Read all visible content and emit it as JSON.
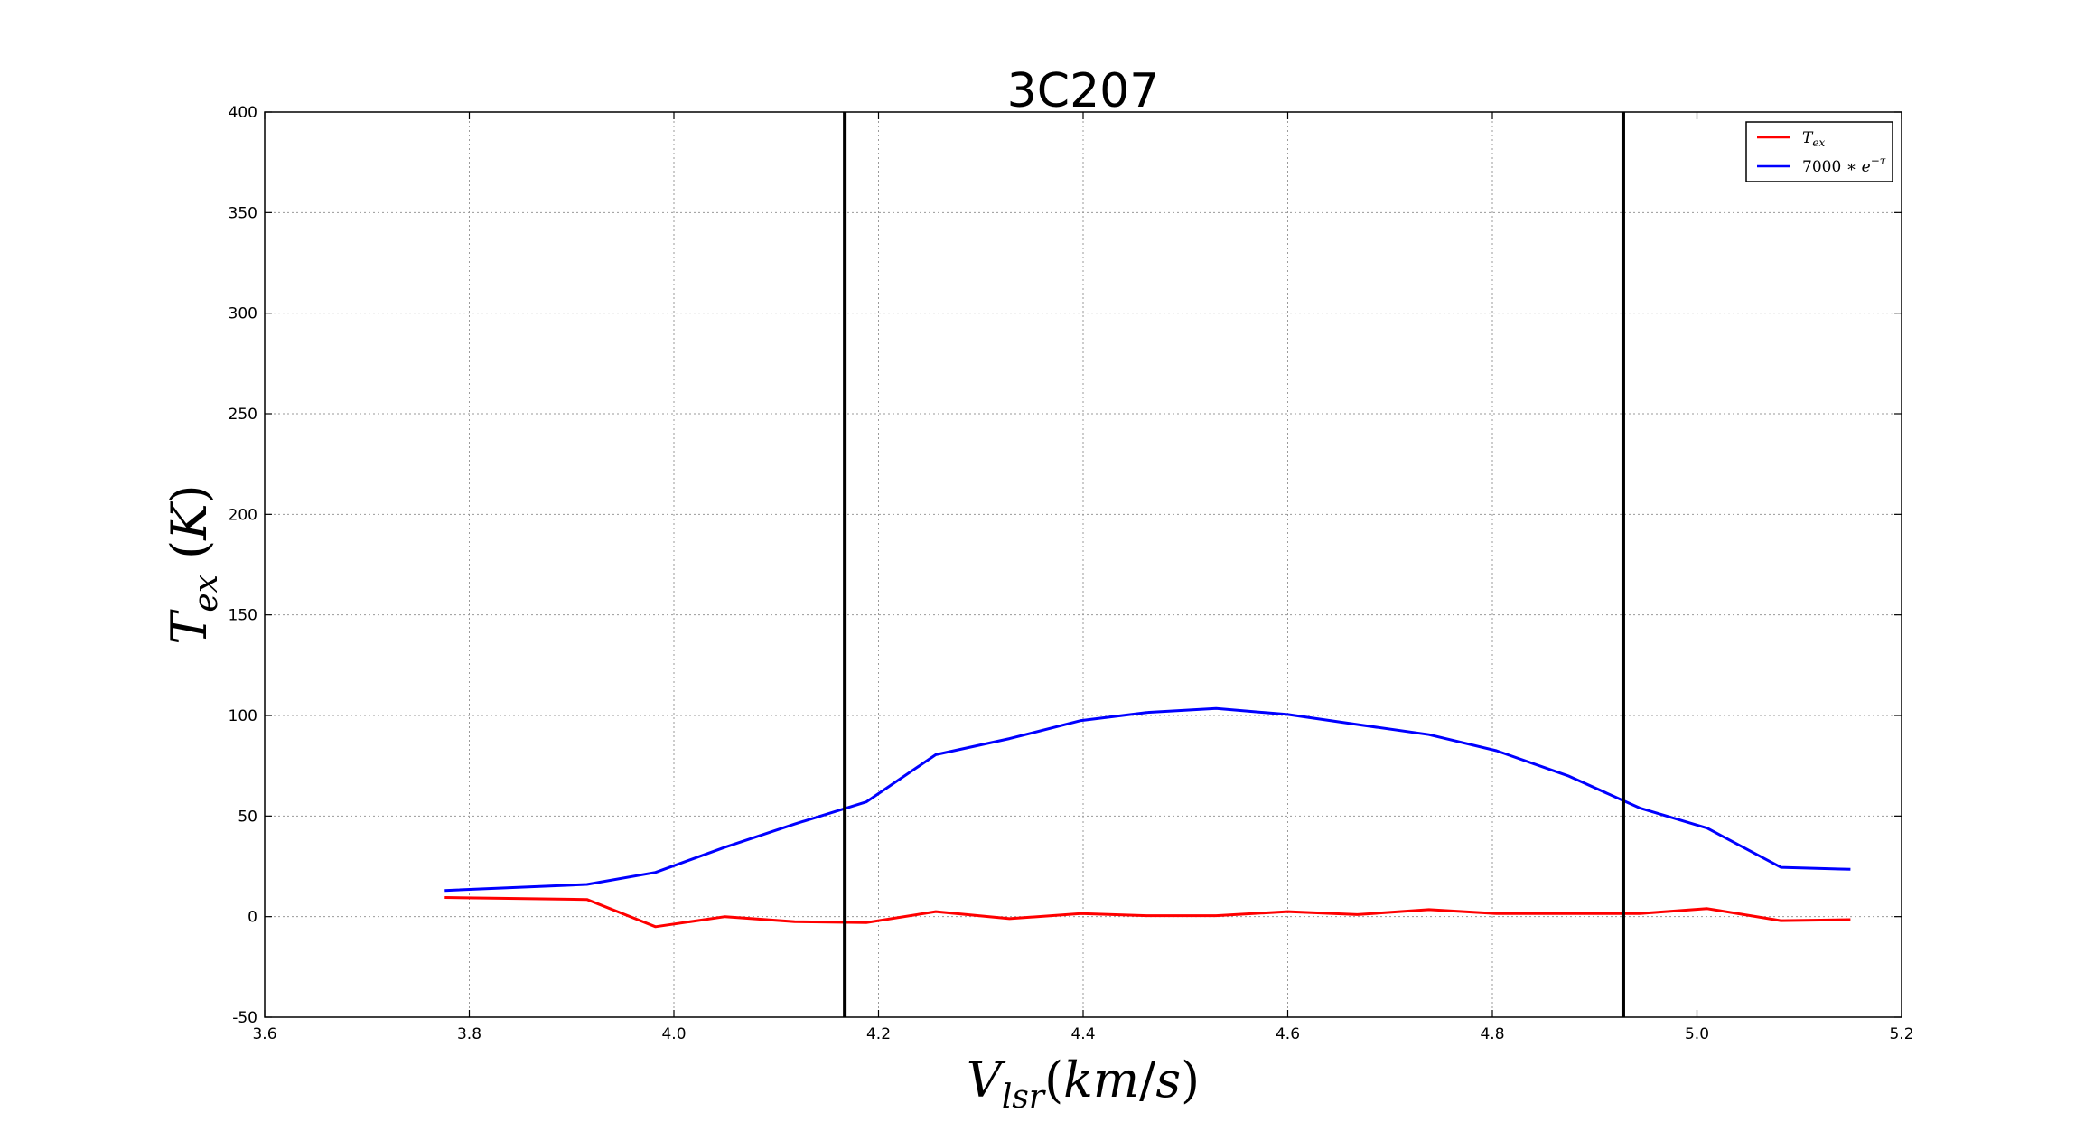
{
  "chart_data": {
    "type": "line",
    "title": "3C207",
    "xlabel": "V_lsr(km/s)",
    "ylabel": "T_ex (K)",
    "xlim": [
      3.6,
      5.2
    ],
    "ylim": [
      -50,
      400
    ],
    "xticks": [
      "3.6",
      "3.8",
      "4.0",
      "4.2",
      "4.4",
      "4.6",
      "4.8",
      "5.0",
      "5.2"
    ],
    "yticks": [
      "-50",
      "0",
      "50",
      "100",
      "150",
      "200",
      "250",
      "300",
      "350",
      "400"
    ],
    "grid": true,
    "legend_position": "top-right",
    "vlines": [
      4.167,
      4.928
    ],
    "vline_color": "#000000",
    "series": [
      {
        "name": "T_ex",
        "color": "#ff0000",
        "x": [
          3.776,
          3.915,
          3.982,
          4.05,
          4.118,
          4.188,
          4.256,
          4.328,
          4.398,
          4.462,
          4.53,
          4.6,
          4.668,
          4.738,
          4.804,
          4.874,
          4.944,
          5.01,
          5.082,
          5.15
        ],
        "y": [
          9.5,
          8.5,
          -5.0,
          0.0,
          -2.5,
          -3.0,
          2.5,
          -1.0,
          1.5,
          0.5,
          0.5,
          2.5,
          1.0,
          3.5,
          1.5,
          1.5,
          1.5,
          4.0,
          -2.0,
          -1.5
        ]
      },
      {
        "name": "7000 * e^-τ",
        "color": "#0000ff",
        "x": [
          3.776,
          3.915,
          3.982,
          4.05,
          4.118,
          4.188,
          4.256,
          4.328,
          4.398,
          4.462,
          4.53,
          4.6,
          4.668,
          4.738,
          4.804,
          4.874,
          4.944,
          5.01,
          5.082,
          5.15
        ],
        "y": [
          13.0,
          16.0,
          22.0,
          34.5,
          46.0,
          57.0,
          80.5,
          88.5,
          97.5,
          101.5,
          103.5,
          100.5,
          95.5,
          90.5,
          82.5,
          70.0,
          54.0,
          44.0,
          24.5,
          23.5
        ]
      }
    ]
  }
}
